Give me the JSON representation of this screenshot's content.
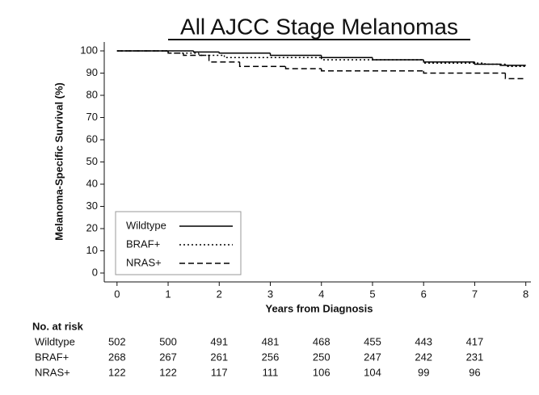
{
  "chart_data": {
    "type": "line",
    "drawstyle": "steps-post",
    "title": "All AJCC Stage Melanomas",
    "x_label": "Years from Diagnosis",
    "y_label": "Melanoma-Specific Survival (%)",
    "xlim": [
      -0.25,
      8.1
    ],
    "ylim": [
      -4,
      104
    ],
    "xticks": [
      0,
      1,
      2,
      3,
      4,
      5,
      6,
      7,
      8
    ],
    "yticks": [
      0,
      10,
      20,
      30,
      40,
      50,
      60,
      70,
      80,
      90,
      100
    ],
    "legend": "lower left",
    "series": [
      {
        "name": "Wildtype",
        "color": "#000000",
        "dash": "solid",
        "x": [
          0,
          1.5,
          2,
          3,
          4,
          5,
          6,
          7,
          7.5,
          8
        ],
        "values": [
          100,
          99.5,
          99,
          98,
          97,
          96,
          95,
          94,
          93.5,
          93.5
        ],
        "at_risk": [
          502,
          500,
          491,
          481,
          468,
          455,
          443,
          417
        ]
      },
      {
        "name": "BRAF+",
        "color": "#000000",
        "dash": "dotted",
        "x": [
          0,
          1,
          1.6,
          2.1,
          4,
          6,
          7.2,
          7.6,
          8
        ],
        "values": [
          100,
          99,
          98,
          97,
          96,
          94.5,
          94,
          93,
          93
        ],
        "at_risk": [
          268,
          267,
          261,
          256,
          250,
          247,
          242,
          231
        ]
      },
      {
        "name": "NRAS+",
        "color": "#000000",
        "dash": "dashed",
        "x": [
          0,
          1,
          1.3,
          1.8,
          2.4,
          3.3,
          4,
          6,
          7.6,
          8
        ],
        "values": [
          100,
          99,
          98,
          95,
          93,
          92,
          91,
          90,
          87.5,
          87.5
        ],
        "at_risk": [
          122,
          122,
          117,
          111,
          106,
          104,
          99,
          96
        ]
      }
    ],
    "risk_table_title": "No. at risk"
  }
}
